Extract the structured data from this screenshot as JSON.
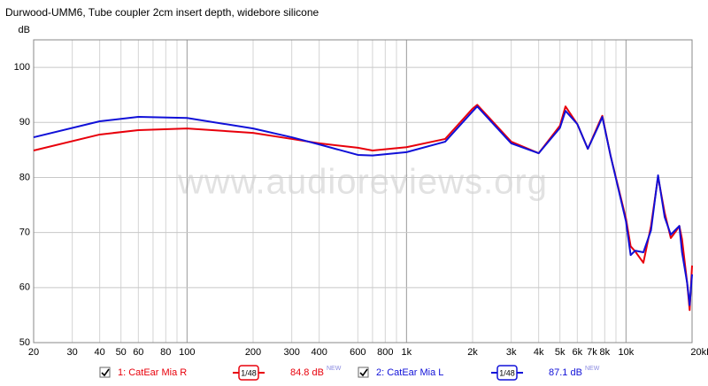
{
  "chart_data": {
    "type": "line",
    "title": "Durwood-UMM6, Tube coupler 2cm insert depth, widebore silicone",
    "y_label": "dB",
    "watermark": "www.audioreviews.org",
    "x_scale": "log",
    "grid": true,
    "xlim": [
      20,
      20000
    ],
    "ylim": [
      50,
      105
    ],
    "yticks": [
      50,
      60,
      70,
      80,
      90,
      100
    ],
    "xticks": [
      20,
      30,
      40,
      50,
      60,
      80,
      100,
      200,
      300,
      400,
      600,
      800,
      {
        "value": 1000,
        "label": "1k"
      },
      {
        "value": 2000,
        "label": "2k"
      },
      {
        "value": 3000,
        "label": "3k"
      },
      {
        "value": 4000,
        "label": "4k"
      },
      {
        "value": 5000,
        "label": "5k"
      },
      {
        "value": 6000,
        "label": "6k"
      },
      {
        "value": 7000,
        "label": "7k"
      },
      {
        "value": 8000,
        "label": "8k"
      },
      {
        "value": 10000,
        "label": "10k"
      },
      {
        "value": 20000,
        "label": "20kHz"
      }
    ],
    "xminor": [
      70,
      90,
      700,
      900,
      9000
    ],
    "x": [
      20,
      40,
      60,
      100,
      200,
      300,
      400,
      600,
      700,
      1000,
      1500,
      2000,
      2100,
      3000,
      4000,
      5000,
      5300,
      6000,
      6700,
      7500,
      7800,
      8500,
      10000,
      10500,
      11000,
      12000,
      13000,
      14000,
      15000,
      16000,
      17000,
      17500,
      18000,
      19000,
      19500,
      20000
    ],
    "series": [
      {
        "name": "1: CatEar Mia R",
        "color": "#e8000b",
        "smoothing": "1/48",
        "level": {
          "value": 84.8,
          "label": "84.8 dB"
        },
        "tag": "NEW",
        "values": [
          84.9,
          87.8,
          88.6,
          88.9,
          88.1,
          87.0,
          86.2,
          85.4,
          84.9,
          85.5,
          87.0,
          92.5,
          93.2,
          86.5,
          84.4,
          89.4,
          92.9,
          89.7,
          85.2,
          89.7,
          91.2,
          84.0,
          72.5,
          67.5,
          66.6,
          64.5,
          71.2,
          80.1,
          73.6,
          69.0,
          70.4,
          71.2,
          68.8,
          60.8,
          55.9,
          64.0
        ]
      },
      {
        "name": "2: CatEar Mia L",
        "color": "#1010d8",
        "smoothing": "1/48",
        "level": {
          "value": 87.1,
          "label": "87.1 dB"
        },
        "tag": "NEW",
        "values": [
          87.3,
          90.2,
          91.0,
          90.8,
          88.9,
          87.3,
          86.0,
          84.1,
          84.0,
          84.6,
          86.5,
          92.0,
          92.9,
          86.2,
          84.4,
          89.0,
          92.1,
          89.7,
          85.2,
          89.4,
          91.0,
          84.0,
          72.0,
          65.9,
          66.7,
          66.4,
          70.4,
          80.4,
          72.8,
          69.6,
          70.7,
          71.2,
          66.4,
          60.8,
          56.8,
          62.4
        ]
      }
    ]
  }
}
